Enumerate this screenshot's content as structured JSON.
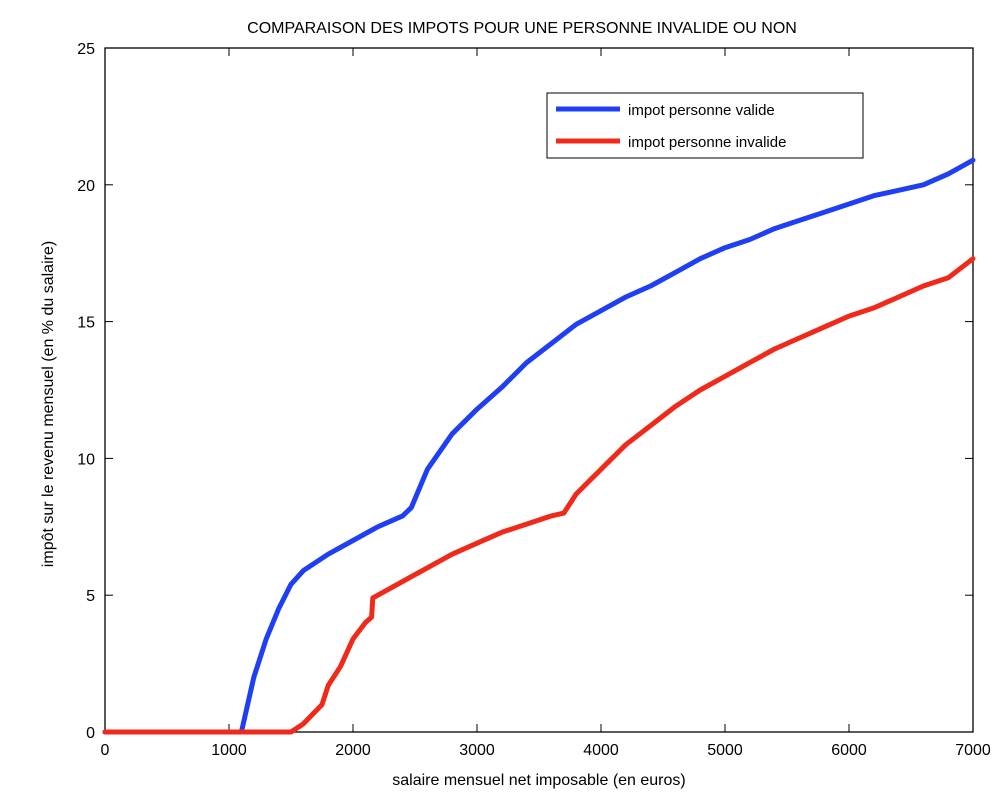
{
  "chart_data": {
    "type": "line",
    "title": "COMPARAISON DES IMPOTS POUR UNE PERSONNE INVALIDE OU NON",
    "xlabel": "salaire mensuel net imposable (en euros)",
    "ylabel": "impôt sur le revenu mensuel (en % du salaire)",
    "xlim": [
      0,
      7000
    ],
    "ylim": [
      0,
      25
    ],
    "xticks": [
      0,
      1000,
      2000,
      3000,
      4000,
      5000,
      6000,
      7000
    ],
    "yticks": [
      0,
      5,
      10,
      15,
      20,
      25
    ],
    "grid": false,
    "legend_position": "top-right",
    "series": [
      {
        "name": "impot personne valide",
        "color": "#1f3ff5",
        "x": [
          0,
          1000,
          1100,
          1200,
          1300,
          1400,
          1500,
          1600,
          1800,
          2000,
          2200,
          2400,
          2470,
          2600,
          2800,
          3000,
          3200,
          3400,
          3600,
          3800,
          4000,
          4200,
          4400,
          4600,
          4800,
          5000,
          5200,
          5400,
          5600,
          5800,
          6000,
          6200,
          6400,
          6600,
          6800,
          7000
        ],
        "y": [
          0,
          0,
          0,
          2.0,
          3.4,
          4.5,
          5.4,
          5.9,
          6.5,
          7.0,
          7.5,
          7.9,
          8.2,
          9.6,
          10.9,
          11.8,
          12.6,
          13.5,
          14.2,
          14.9,
          15.4,
          15.9,
          16.3,
          16.8,
          17.3,
          17.7,
          18.0,
          18.4,
          18.7,
          19.0,
          19.3,
          19.6,
          19.8,
          20.0,
          20.4,
          20.9
        ]
      },
      {
        "name": "impot personne invalide",
        "color": "#f02a1a",
        "x": [
          0,
          1000,
          1500,
          1600,
          1750,
          1800,
          1900,
          2000,
          2100,
          2150,
          2160,
          2200,
          2400,
          2600,
          2800,
          3000,
          3200,
          3400,
          3600,
          3700,
          3800,
          4000,
          4200,
          4400,
          4600,
          4800,
          5000,
          5200,
          5400,
          5600,
          5800,
          6000,
          6200,
          6400,
          6600,
          6800,
          7000
        ],
        "y": [
          0,
          0,
          0,
          0.3,
          1.0,
          1.7,
          2.4,
          3.4,
          4.0,
          4.2,
          4.9,
          5.0,
          5.5,
          6.0,
          6.5,
          6.9,
          7.3,
          7.6,
          7.9,
          8.0,
          8.7,
          9.6,
          10.5,
          11.2,
          11.9,
          12.5,
          13.0,
          13.5,
          14.0,
          14.4,
          14.8,
          15.2,
          15.5,
          15.9,
          16.3,
          16.6,
          17.3
        ]
      }
    ]
  }
}
